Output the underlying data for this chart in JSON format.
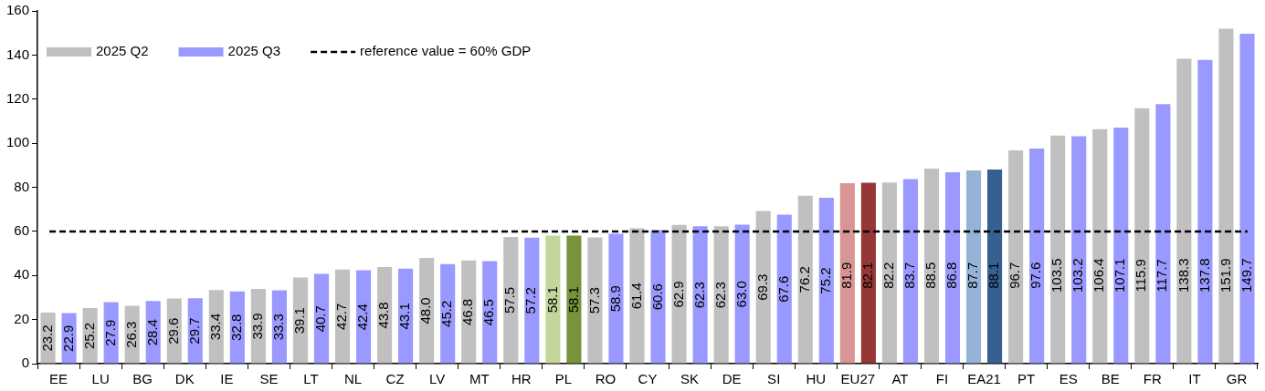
{
  "chart_data": {
    "type": "bar",
    "categories": [
      "EE",
      "LU",
      "BG",
      "DK",
      "IE",
      "SE",
      "LT",
      "NL",
      "CZ",
      "LV",
      "MT",
      "HR",
      "PL",
      "RO",
      "CY",
      "SK",
      "DE",
      "SI",
      "HU",
      "EU27",
      "AT",
      "FI",
      "EA21",
      "PT",
      "ES",
      "BE",
      "FR",
      "IT",
      "GR"
    ],
    "series": [
      {
        "name": "2025 Q2",
        "color": "#c0c0c0",
        "colors": [
          "#c0c0c0",
          "#c0c0c0",
          "#c0c0c0",
          "#c0c0c0",
          "#c0c0c0",
          "#c0c0c0",
          "#c0c0c0",
          "#c0c0c0",
          "#c0c0c0",
          "#c0c0c0",
          "#c0c0c0",
          "#c0c0c0",
          "#c3d69b",
          "#c0c0c0",
          "#c0c0c0",
          "#c0c0c0",
          "#c0c0c0",
          "#c0c0c0",
          "#c0c0c0",
          "#d99594",
          "#c0c0c0",
          "#c0c0c0",
          "#95b3d7",
          "#c0c0c0",
          "#c0c0c0",
          "#c0c0c0",
          "#c0c0c0",
          "#c0c0c0",
          "#c0c0c0"
        ],
        "values": [
          23.2,
          25.2,
          26.3,
          29.6,
          33.4,
          33.9,
          39.1,
          42.7,
          43.8,
          48.0,
          46.8,
          57.5,
          58.1,
          57.3,
          61.4,
          62.9,
          62.3,
          69.3,
          76.2,
          81.9,
          82.2,
          88.5,
          87.7,
          96.7,
          103.5,
          106.4,
          115.9,
          138.3,
          151.9
        ],
        "value_labels": [
          "23.2",
          "25.2",
          "26.3",
          "29.6",
          "33.4",
          "33.9",
          "39.1",
          "42.7",
          "43.8",
          "48.0",
          "46.8",
          "57.5",
          "58.1",
          "57.3",
          "61.4",
          "62.9",
          "62.3",
          "69.3",
          "76.2",
          "81.9",
          "82.2",
          "88.5",
          "87.7",
          "96.7",
          "103.5",
          "106.4",
          "115.9",
          "138.3",
          "151.9"
        ]
      },
      {
        "name": "2025 Q3",
        "color": "#9999ff",
        "colors": [
          "#9999ff",
          "#9999ff",
          "#9999ff",
          "#9999ff",
          "#9999ff",
          "#9999ff",
          "#9999ff",
          "#9999ff",
          "#9999ff",
          "#9999ff",
          "#9999ff",
          "#9999ff",
          "#77933c",
          "#9999ff",
          "#9999ff",
          "#9999ff",
          "#9999ff",
          "#9999ff",
          "#9999ff",
          "#953735",
          "#9999ff",
          "#9999ff",
          "#376092",
          "#9999ff",
          "#9999ff",
          "#9999ff",
          "#9999ff",
          "#9999ff",
          "#9999ff"
        ],
        "values": [
          22.9,
          27.9,
          28.4,
          29.7,
          32.8,
          33.3,
          40.7,
          42.4,
          43.1,
          45.2,
          46.5,
          57.2,
          58.1,
          58.9,
          60.6,
          62.3,
          63.0,
          67.6,
          75.2,
          82.1,
          83.7,
          86.8,
          88.1,
          97.6,
          103.2,
          107.1,
          117.7,
          137.8,
          149.7
        ],
        "value_labels": [
          "22.9",
          "27.9",
          "28.4",
          "29.7",
          "32.8",
          "33.3",
          "40.7",
          "42.4",
          "43.1",
          "45.2",
          "46.5",
          "57.2",
          "58.1",
          "58.9",
          "60.6",
          "62.3",
          "63.0",
          "67.6",
          "75.2",
          "82.1",
          "83.7",
          "86.8",
          "88.1",
          "97.6",
          "103.2",
          "107.1",
          "117.7",
          "137.8",
          "149.7"
        ]
      }
    ],
    "ylim": [
      0,
      160
    ],
    "yticks": [
      0,
      20,
      40,
      60,
      80,
      100,
      120,
      140,
      160
    ],
    "grid": false,
    "legend": "top left",
    "ref_lines": [
      {
        "axis": "y",
        "value": 60,
        "label": "reference value = 60% GDP",
        "color": "#000000",
        "line_style": "dashed"
      }
    ]
  }
}
